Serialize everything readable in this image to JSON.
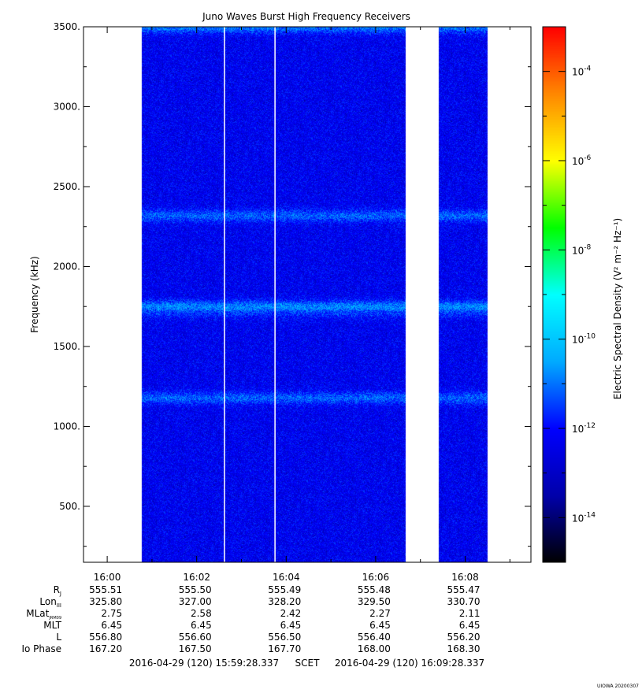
{
  "chart_data": {
    "type": "heatmap",
    "title": "Juno Waves Burst High Frequency Receivers",
    "ylabel": "Frequency (kHz)",
    "ylim": [
      150,
      3500
    ],
    "yticks": [
      "500.",
      "1000.",
      "1500.",
      "2000.",
      "2500.",
      "3000.",
      "3500."
    ],
    "y_tick_values": [
      500,
      1000,
      1500,
      2000,
      2500,
      3000,
      3500
    ],
    "xlim_minutes": [
      -0.53,
      9.47
    ],
    "xticks": [
      "16:00",
      "16:02",
      "16:04",
      "16:06",
      "16:08"
    ],
    "x_tick_minutes": [
      0,
      2,
      4,
      6,
      8
    ],
    "data_segments_minutes": [
      [
        0.77,
        6.67
      ],
      [
        7.4,
        8.5
      ]
    ],
    "gap_lines_minutes": [
      2.62,
      3.75
    ],
    "colorbar": {
      "label": "Electric Spectral Density (V² m⁻² Hz⁻¹)",
      "log_min": -15,
      "log_max": -3,
      "tick_exponents": [
        "-4",
        "-6",
        "-8",
        "-10",
        "-12",
        "-14"
      ],
      "colors": [
        "#000000",
        "#0000aa",
        "#0000ff",
        "#00aaff",
        "#00ffff",
        "#00ff00",
        "#ffff00",
        "#ff8800",
        "#ff0000"
      ]
    },
    "background_log": -12.2,
    "bands": [
      {
        "freq_khz": 2320,
        "level_log": -11.1
      },
      {
        "freq_khz": 1750,
        "level_log": -10.7
      },
      {
        "freq_khz": 1720,
        "level_log": -11.4
      },
      {
        "freq_khz": 1180,
        "level_log": -11.1
      },
      {
        "freq_khz": 3500,
        "level_log": -10.9
      }
    ],
    "ephemeris": {
      "labels": [
        "R",
        "Lon",
        "MLat",
        "MLT",
        "L",
        "Io Phase"
      ],
      "subscripts": [
        "J",
        "III",
        "JRM09",
        "",
        "",
        ""
      ],
      "rows": [
        [
          "555.51",
          "555.50",
          "555.49",
          "555.48",
          "555.47"
        ],
        [
          "325.80",
          "327.00",
          "328.20",
          "329.50",
          "330.70"
        ],
        [
          "2.75",
          "2.58",
          "2.42",
          "2.27",
          "2.11"
        ],
        [
          "6.45",
          "6.45",
          "6.45",
          "6.45",
          "6.45"
        ],
        [
          "556.80",
          "556.60",
          "556.50",
          "556.40",
          "556.20"
        ],
        [
          "167.20",
          "167.50",
          "167.70",
          "168.00",
          "168.30"
        ]
      ]
    },
    "time_range": {
      "start": "2016-04-29 (120) 15:59:28.337",
      "middle": "SCET",
      "end": "2016-04-29 (120) 16:09:28.337"
    },
    "stamp": "UIOWA 20200307"
  }
}
